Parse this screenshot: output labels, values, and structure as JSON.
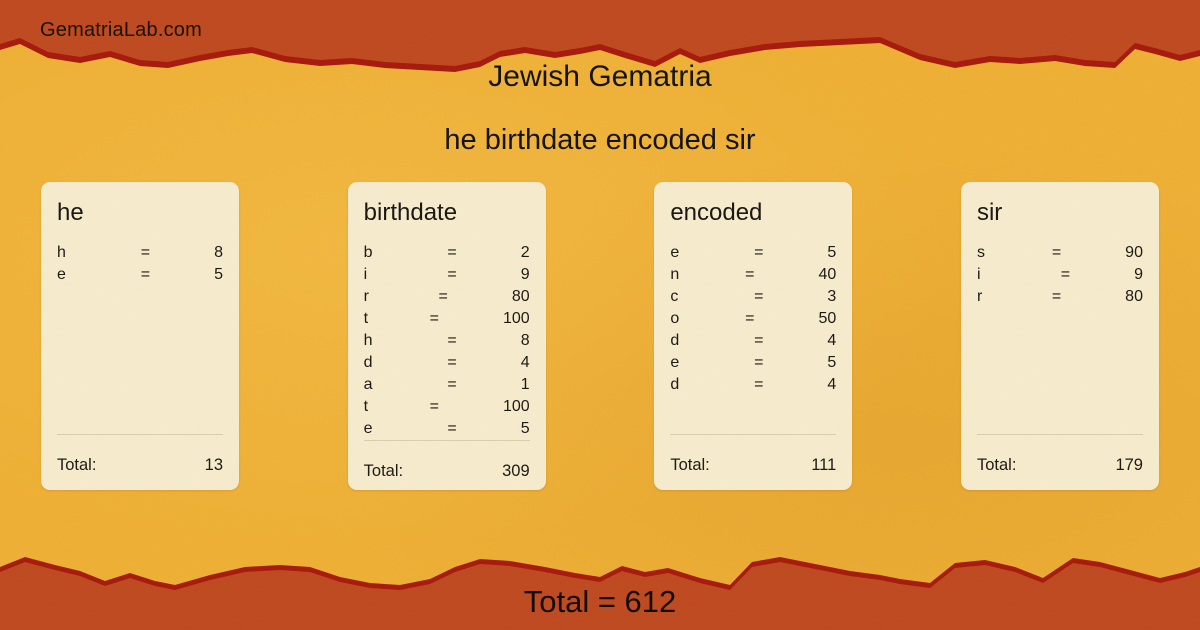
{
  "site": {
    "name": "GematriaLab.com"
  },
  "header": {
    "title": "Jewish Gematria",
    "subtitle": "he birthdate encoded sir"
  },
  "equals_sign": "=",
  "cards": [
    {
      "word": "he",
      "letters": [
        {
          "letter": "h",
          "value": "8"
        },
        {
          "letter": "e",
          "value": "5"
        }
      ],
      "total_label": "Total:",
      "total": "13"
    },
    {
      "word": "birthdate",
      "letters": [
        {
          "letter": "b",
          "value": "2"
        },
        {
          "letter": "i",
          "value": "9"
        },
        {
          "letter": "r",
          "value": "80"
        },
        {
          "letter": "t",
          "value": "100"
        },
        {
          "letter": "h",
          "value": "8"
        },
        {
          "letter": "d",
          "value": "4"
        },
        {
          "letter": "a",
          "value": "1"
        },
        {
          "letter": "t",
          "value": "100"
        },
        {
          "letter": "e",
          "value": "5"
        }
      ],
      "total_label": "Total:",
      "total": "309"
    },
    {
      "word": "encoded",
      "letters": [
        {
          "letter": "e",
          "value": "5"
        },
        {
          "letter": "n",
          "value": "40"
        },
        {
          "letter": "c",
          "value": "3"
        },
        {
          "letter": "o",
          "value": "50"
        },
        {
          "letter": "d",
          "value": "4"
        },
        {
          "letter": "e",
          "value": "5"
        },
        {
          "letter": "d",
          "value": "4"
        }
      ],
      "total_label": "Total:",
      "total": "111"
    },
    {
      "word": "sir",
      "letters": [
        {
          "letter": "s",
          "value": "90"
        },
        {
          "letter": "i",
          "value": "9"
        },
        {
          "letter": "r",
          "value": "80"
        }
      ],
      "total_label": "Total:",
      "total": "179"
    }
  ],
  "footer": {
    "total_text": "Total = 612"
  },
  "colors": {
    "background": "#efb136",
    "band": "#c04b21",
    "band_edge": "#a81c0e",
    "card": "#f7ecce",
    "text": "#1e1b15"
  }
}
